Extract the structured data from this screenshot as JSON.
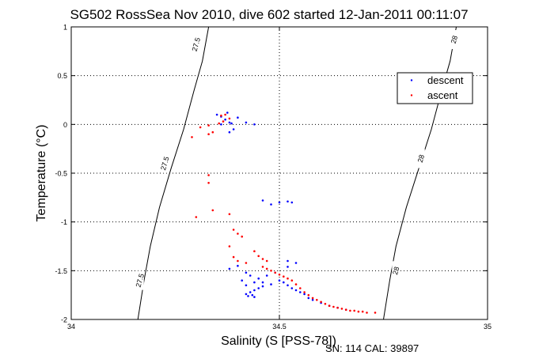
{
  "chart_data": {
    "type": "scatter",
    "title": "SG502 RossSea Nov 2010, dive 602 started 12-Jan-2011 00:11:07",
    "xlabel": "Salinity (S [PSS-78])",
    "ylabel": "Temperature (°C)",
    "xlim": [
      34,
      35
    ],
    "ylim": [
      -2,
      1
    ],
    "xticks": [
      "34",
      "34.5",
      "35"
    ],
    "yticks": [
      "1",
      "0.5",
      "0",
      "-0.5",
      "-1",
      "-1.5",
      "-2"
    ],
    "grid": true,
    "legend_position": "top-right",
    "footer": "SN: 114  CAL: 39897",
    "contours": [
      {
        "label": "27.5",
        "label_positions": [
          [
            34.3,
            0.82
          ],
          [
            34.225,
            -0.4
          ],
          [
            34.165,
            -1.6
          ]
        ],
        "points": [
          [
            34.16,
            -2.0
          ],
          [
            34.175,
            -1.6
          ],
          [
            34.19,
            -1.25
          ],
          [
            34.212,
            -0.85
          ],
          [
            34.24,
            -0.45
          ],
          [
            34.27,
            -0.05
          ],
          [
            34.295,
            0.35
          ],
          [
            34.315,
            0.65
          ],
          [
            34.33,
            1.0
          ]
        ]
      },
      {
        "label": "28",
        "label_positions": [
          [
            34.92,
            0.87
          ],
          [
            34.84,
            -0.35
          ],
          [
            34.78,
            -1.5
          ]
        ],
        "points": [
          [
            34.75,
            -2.0
          ],
          [
            34.765,
            -1.6
          ],
          [
            34.78,
            -1.25
          ],
          [
            34.805,
            -0.85
          ],
          [
            34.835,
            -0.45
          ],
          [
            34.865,
            -0.05
          ],
          [
            34.89,
            0.35
          ],
          [
            34.91,
            0.65
          ],
          [
            34.925,
            1.0
          ]
        ]
      }
    ],
    "series": [
      {
        "name": "descent",
        "color": "#0000ff",
        "points": [
          [
            34.35,
            0.1
          ],
          [
            34.36,
            0.08
          ],
          [
            34.37,
            0.05
          ],
          [
            34.38,
            0.02
          ],
          [
            34.36,
            0.0
          ],
          [
            34.39,
            -0.05
          ],
          [
            34.38,
            -0.08
          ],
          [
            34.4,
            0.07
          ],
          [
            34.375,
            0.12
          ],
          [
            34.385,
            0.01
          ],
          [
            34.42,
            0.02
          ],
          [
            34.44,
            0.0
          ],
          [
            34.46,
            -0.78
          ],
          [
            34.48,
            -0.82
          ],
          [
            34.5,
            -0.8
          ],
          [
            34.52,
            -0.79
          ],
          [
            34.53,
            -0.8
          ],
          [
            34.52,
            -1.4
          ],
          [
            34.54,
            -1.42
          ],
          [
            34.52,
            -1.46
          ],
          [
            34.38,
            -1.48
          ],
          [
            34.4,
            -1.45
          ],
          [
            34.42,
            -1.52
          ],
          [
            34.43,
            -1.55
          ],
          [
            34.41,
            -1.6
          ],
          [
            34.44,
            -1.62
          ],
          [
            34.42,
            -1.65
          ],
          [
            34.45,
            -1.58
          ],
          [
            34.46,
            -1.62
          ],
          [
            34.47,
            -1.55
          ],
          [
            34.44,
            -1.7
          ],
          [
            34.43,
            -1.72
          ],
          [
            34.42,
            -1.74
          ],
          [
            34.425,
            -1.76
          ],
          [
            34.435,
            -1.75
          ],
          [
            34.44,
            -1.77
          ],
          [
            34.45,
            -1.68
          ],
          [
            34.46,
            -1.66
          ],
          [
            34.48,
            -1.64
          ],
          [
            34.5,
            -1.6
          ],
          [
            34.51,
            -1.62
          ],
          [
            34.49,
            -1.52
          ],
          [
            34.52,
            -1.65
          ],
          [
            34.53,
            -1.68
          ],
          [
            34.54,
            -1.7
          ],
          [
            34.55,
            -1.72
          ],
          [
            34.56,
            -1.74
          ],
          [
            34.57,
            -1.78
          ],
          [
            34.58,
            -1.8
          ],
          [
            34.6,
            -1.83
          ],
          [
            34.62,
            -1.86
          ],
          [
            34.64,
            -1.88
          ],
          [
            34.66,
            -1.9
          ]
        ]
      },
      {
        "name": "ascent",
        "color": "#ff0000",
        "points": [
          [
            34.36,
            0.09
          ],
          [
            34.37,
            0.1
          ],
          [
            34.38,
            0.06
          ],
          [
            34.365,
            0.03
          ],
          [
            34.355,
            0.01
          ],
          [
            34.33,
            -0.01
          ],
          [
            34.31,
            -0.03
          ],
          [
            34.29,
            -0.13
          ],
          [
            34.33,
            -0.1
          ],
          [
            34.34,
            -0.08
          ],
          [
            34.33,
            -0.52
          ],
          [
            34.33,
            -0.6
          ],
          [
            34.34,
            -0.88
          ],
          [
            34.3,
            -0.95
          ],
          [
            34.38,
            -0.92
          ],
          [
            34.39,
            -1.08
          ],
          [
            34.4,
            -1.12
          ],
          [
            34.41,
            -1.15
          ],
          [
            34.38,
            -1.25
          ],
          [
            34.39,
            -1.36
          ],
          [
            34.4,
            -1.4
          ],
          [
            34.42,
            -1.42
          ],
          [
            34.44,
            -1.3
          ],
          [
            34.45,
            -1.35
          ],
          [
            34.46,
            -1.38
          ],
          [
            34.47,
            -1.4
          ],
          [
            34.46,
            -1.46
          ],
          [
            34.47,
            -1.48
          ],
          [
            34.48,
            -1.5
          ],
          [
            34.49,
            -1.52
          ],
          [
            34.5,
            -1.54
          ],
          [
            34.51,
            -1.56
          ],
          [
            34.52,
            -1.58
          ],
          [
            34.53,
            -1.6
          ],
          [
            34.54,
            -1.64
          ],
          [
            34.55,
            -1.68
          ],
          [
            34.56,
            -1.72
          ],
          [
            34.57,
            -1.75
          ],
          [
            34.58,
            -1.78
          ],
          [
            34.59,
            -1.8
          ],
          [
            34.6,
            -1.82
          ],
          [
            34.61,
            -1.84
          ],
          [
            34.62,
            -1.86
          ],
          [
            34.63,
            -1.87
          ],
          [
            34.64,
            -1.88
          ],
          [
            34.65,
            -1.89
          ],
          [
            34.66,
            -1.9
          ],
          [
            34.67,
            -1.91
          ],
          [
            34.68,
            -1.91
          ],
          [
            34.69,
            -1.92
          ],
          [
            34.7,
            -1.92
          ],
          [
            34.71,
            -1.93
          ],
          [
            34.73,
            -1.93
          ]
        ]
      }
    ]
  }
}
